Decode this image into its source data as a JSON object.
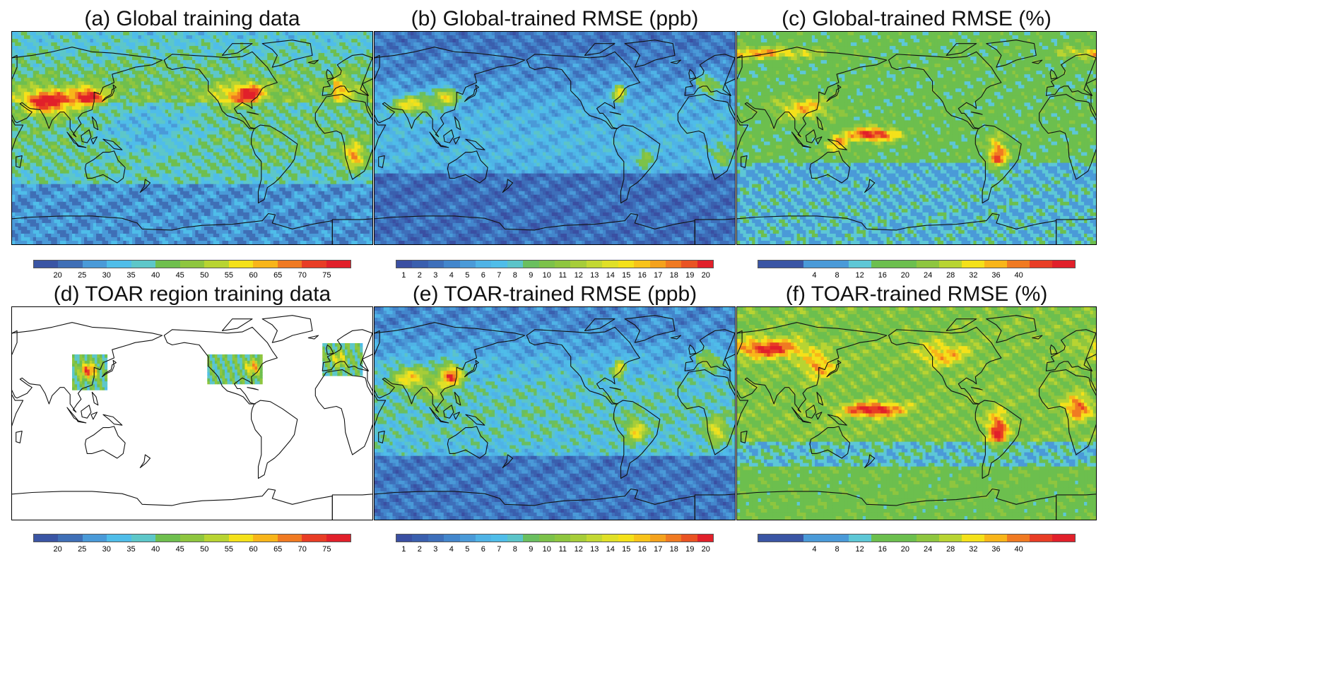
{
  "panels": [
    {
      "id": "a",
      "title": "(a) Global training data",
      "mode": "conc",
      "palette": "conc",
      "colorbar": {
        "ticks": [
          "20",
          "25",
          "30",
          "35",
          "40",
          "45",
          "50",
          "55",
          "60",
          "65",
          "70",
          "75"
        ]
      }
    },
    {
      "id": "b",
      "title": "(b) Global-trained RMSE (ppb)",
      "mode": "rmse",
      "palette": "ppb",
      "colorbar": {
        "ticks": [
          "1",
          "2",
          "3",
          "4",
          "5",
          "6",
          "7",
          "8",
          "9",
          "10",
          "11",
          "12",
          "13",
          "14",
          "15",
          "16",
          "17",
          "18",
          "19",
          "20"
        ]
      }
    },
    {
      "id": "c",
      "title": "(c) Global-trained RMSE (%)",
      "mode": "pct",
      "palette": "pct",
      "colorbar": {
        "ticks": [
          "4",
          "8",
          "12",
          "16",
          "20",
          "24",
          "28",
          "32",
          "36",
          "40"
        ]
      }
    },
    {
      "id": "d",
      "title": "(d) TOAR region training data",
      "mode": "toar",
      "palette": "conc",
      "colorbar": {
        "ticks": [
          "20",
          "25",
          "30",
          "35",
          "40",
          "45",
          "50",
          "55",
          "60",
          "65",
          "70",
          "75"
        ]
      }
    },
    {
      "id": "e",
      "title": "(e) TOAR-trained RMSE (ppb)",
      "mode": "rmse2",
      "palette": "ppb",
      "colorbar": {
        "ticks": [
          "1",
          "2",
          "3",
          "4",
          "5",
          "6",
          "7",
          "8",
          "9",
          "10",
          "11",
          "12",
          "13",
          "14",
          "15",
          "16",
          "17",
          "18",
          "19",
          "20"
        ]
      }
    },
    {
      "id": "f",
      "title": "(f) TOAR-trained RMSE (%)",
      "mode": "pct2",
      "palette": "pct",
      "colorbar": {
        "ticks": [
          "4",
          "8",
          "12",
          "16",
          "20",
          "24",
          "28",
          "32",
          "36",
          "40"
        ]
      }
    }
  ],
  "colors": {
    "conc": [
      "#3a55a4",
      "#3f6fb6",
      "#4a9ad8",
      "#4fbde9",
      "#5dc7c9",
      "#6fbf4e",
      "#8ec63f",
      "#b8d432",
      "#f4e11a",
      "#f8b51a",
      "#f07a22",
      "#e83d25",
      "#e1202a"
    ],
    "ppb": [
      "#3a4fa2",
      "#3a5fae",
      "#3e6fba",
      "#4386cc",
      "#4a9ad8",
      "#4fb3e6",
      "#4fbde9",
      "#5bc4c9",
      "#6abf5f",
      "#7cc24a",
      "#8ec63f",
      "#a6cd39",
      "#c3d833",
      "#e0e027",
      "#f4e11a",
      "#f8c31a",
      "#f4a21d",
      "#f07a22",
      "#e95323",
      "#e1202a"
    ],
    "pct": [
      "#3a55a4",
      "#3a55a4",
      "#4a9ad8",
      "#4a9ad8",
      "#5dc7d6",
      "#6cbf4e",
      "#6cbf4e",
      "#8ec63f",
      "#b8d432",
      "#f4e11a",
      "#f8b51a",
      "#f07a22",
      "#e83d25",
      "#e1202a"
    ]
  }
}
